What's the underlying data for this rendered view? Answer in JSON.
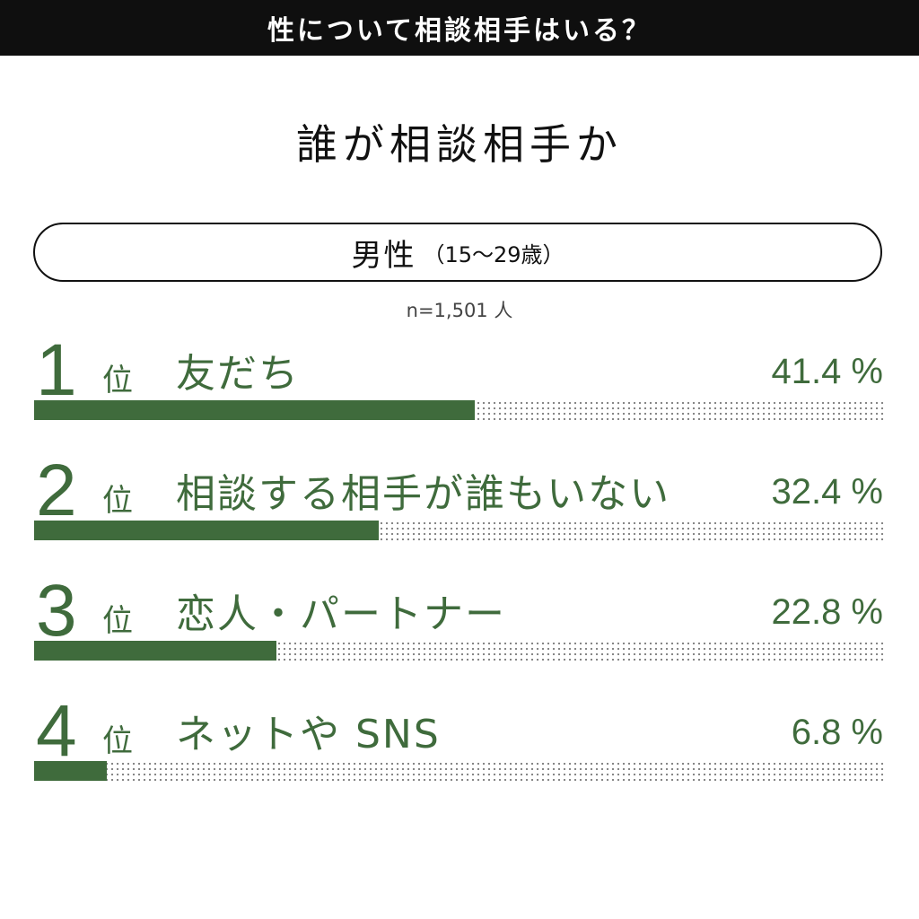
{
  "header": {
    "title": "性について相談相手はいる？"
  },
  "subtitle": "誰が相談相手か",
  "group": {
    "label": "男性",
    "range": "（15〜29歳）"
  },
  "sample": "n=1,501 人",
  "rank_suffix": "位",
  "colors": {
    "bar": "#3f6b3c",
    "header_bg": "#0f0f0f"
  },
  "chart_data": {
    "type": "bar",
    "orientation": "horizontal",
    "unit": "%",
    "xlim": [
      0,
      100
    ],
    "categories": [
      "友だち",
      "相談する相手が誰もいない",
      "恋人・パートナー",
      "ネットや SNS"
    ],
    "ranks": [
      "1",
      "2",
      "3",
      "4"
    ],
    "values": [
      41.4,
      32.4,
      22.8,
      6.8
    ],
    "value_labels": [
      "41.4 %",
      "32.4 %",
      "22.8 %",
      "6.8 %"
    ]
  }
}
